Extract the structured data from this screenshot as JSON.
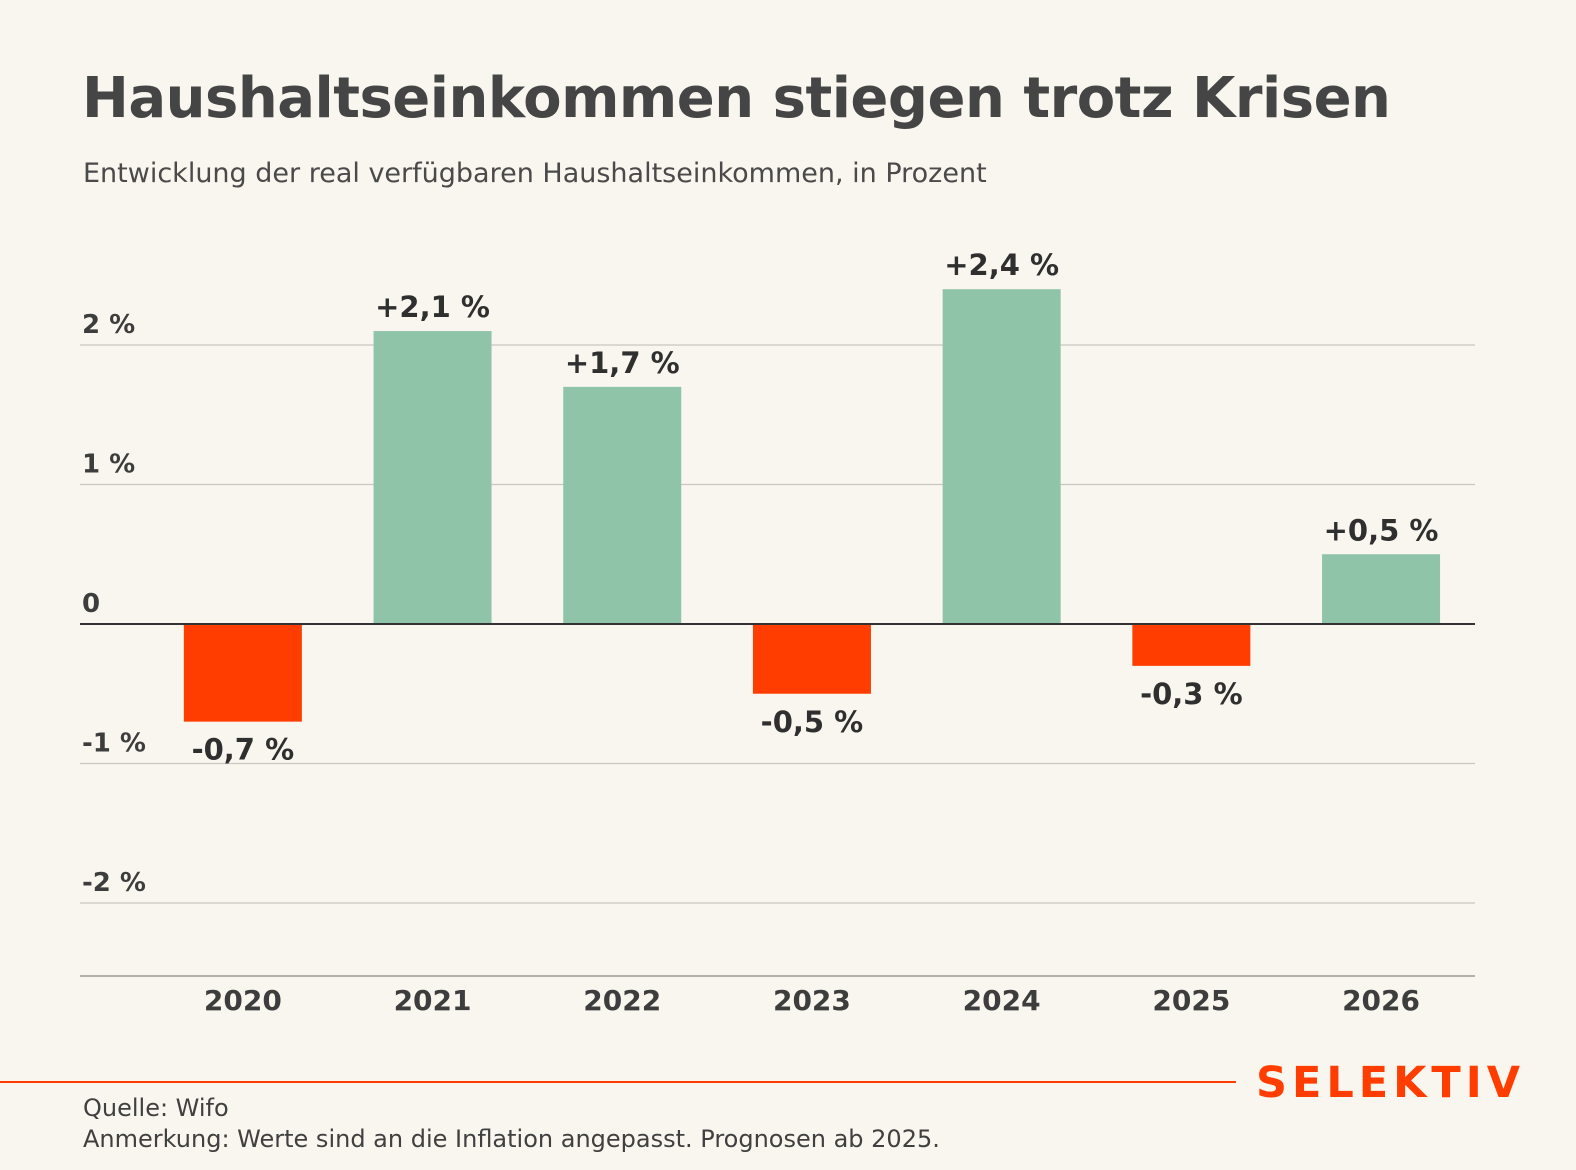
{
  "title": "Haushaltseinkommen stiegen trotz Krisen",
  "subtitle": "Entwicklung der real verfügbaren Haushaltseinkommen, in Prozent",
  "brand": "SELEKTIV",
  "footer": {
    "source": "Quelle: Wifo",
    "note": "Anmerkung: Werte sind an die Inflation angepasst. Prognosen ab 2025."
  },
  "colors": {
    "positive": "#8fc4a9",
    "negative": "#ff3d00",
    "brand": "#ff3d00",
    "background": "#f8f6ee"
  },
  "chart_data": {
    "type": "bar",
    "categories": [
      "2020",
      "2021",
      "2022",
      "2023",
      "2024",
      "2025",
      "2026"
    ],
    "values": [
      -0.7,
      2.1,
      1.7,
      -0.5,
      2.4,
      -0.3,
      0.5
    ],
    "data_labels": [
      "-0,7 %",
      "+2,1 %",
      "+1,7 %",
      "-0,5 %",
      "+2,4 %",
      "-0,3 %",
      "+0,5 %"
    ],
    "y_ticks": [
      2,
      1,
      0,
      -1,
      -2
    ],
    "y_tick_labels": [
      "2 %",
      "1 %",
      "0",
      "-1 %",
      "-2 %"
    ],
    "ylim": [
      -2.5,
      2.5
    ],
    "grid": true,
    "legend": "none"
  }
}
